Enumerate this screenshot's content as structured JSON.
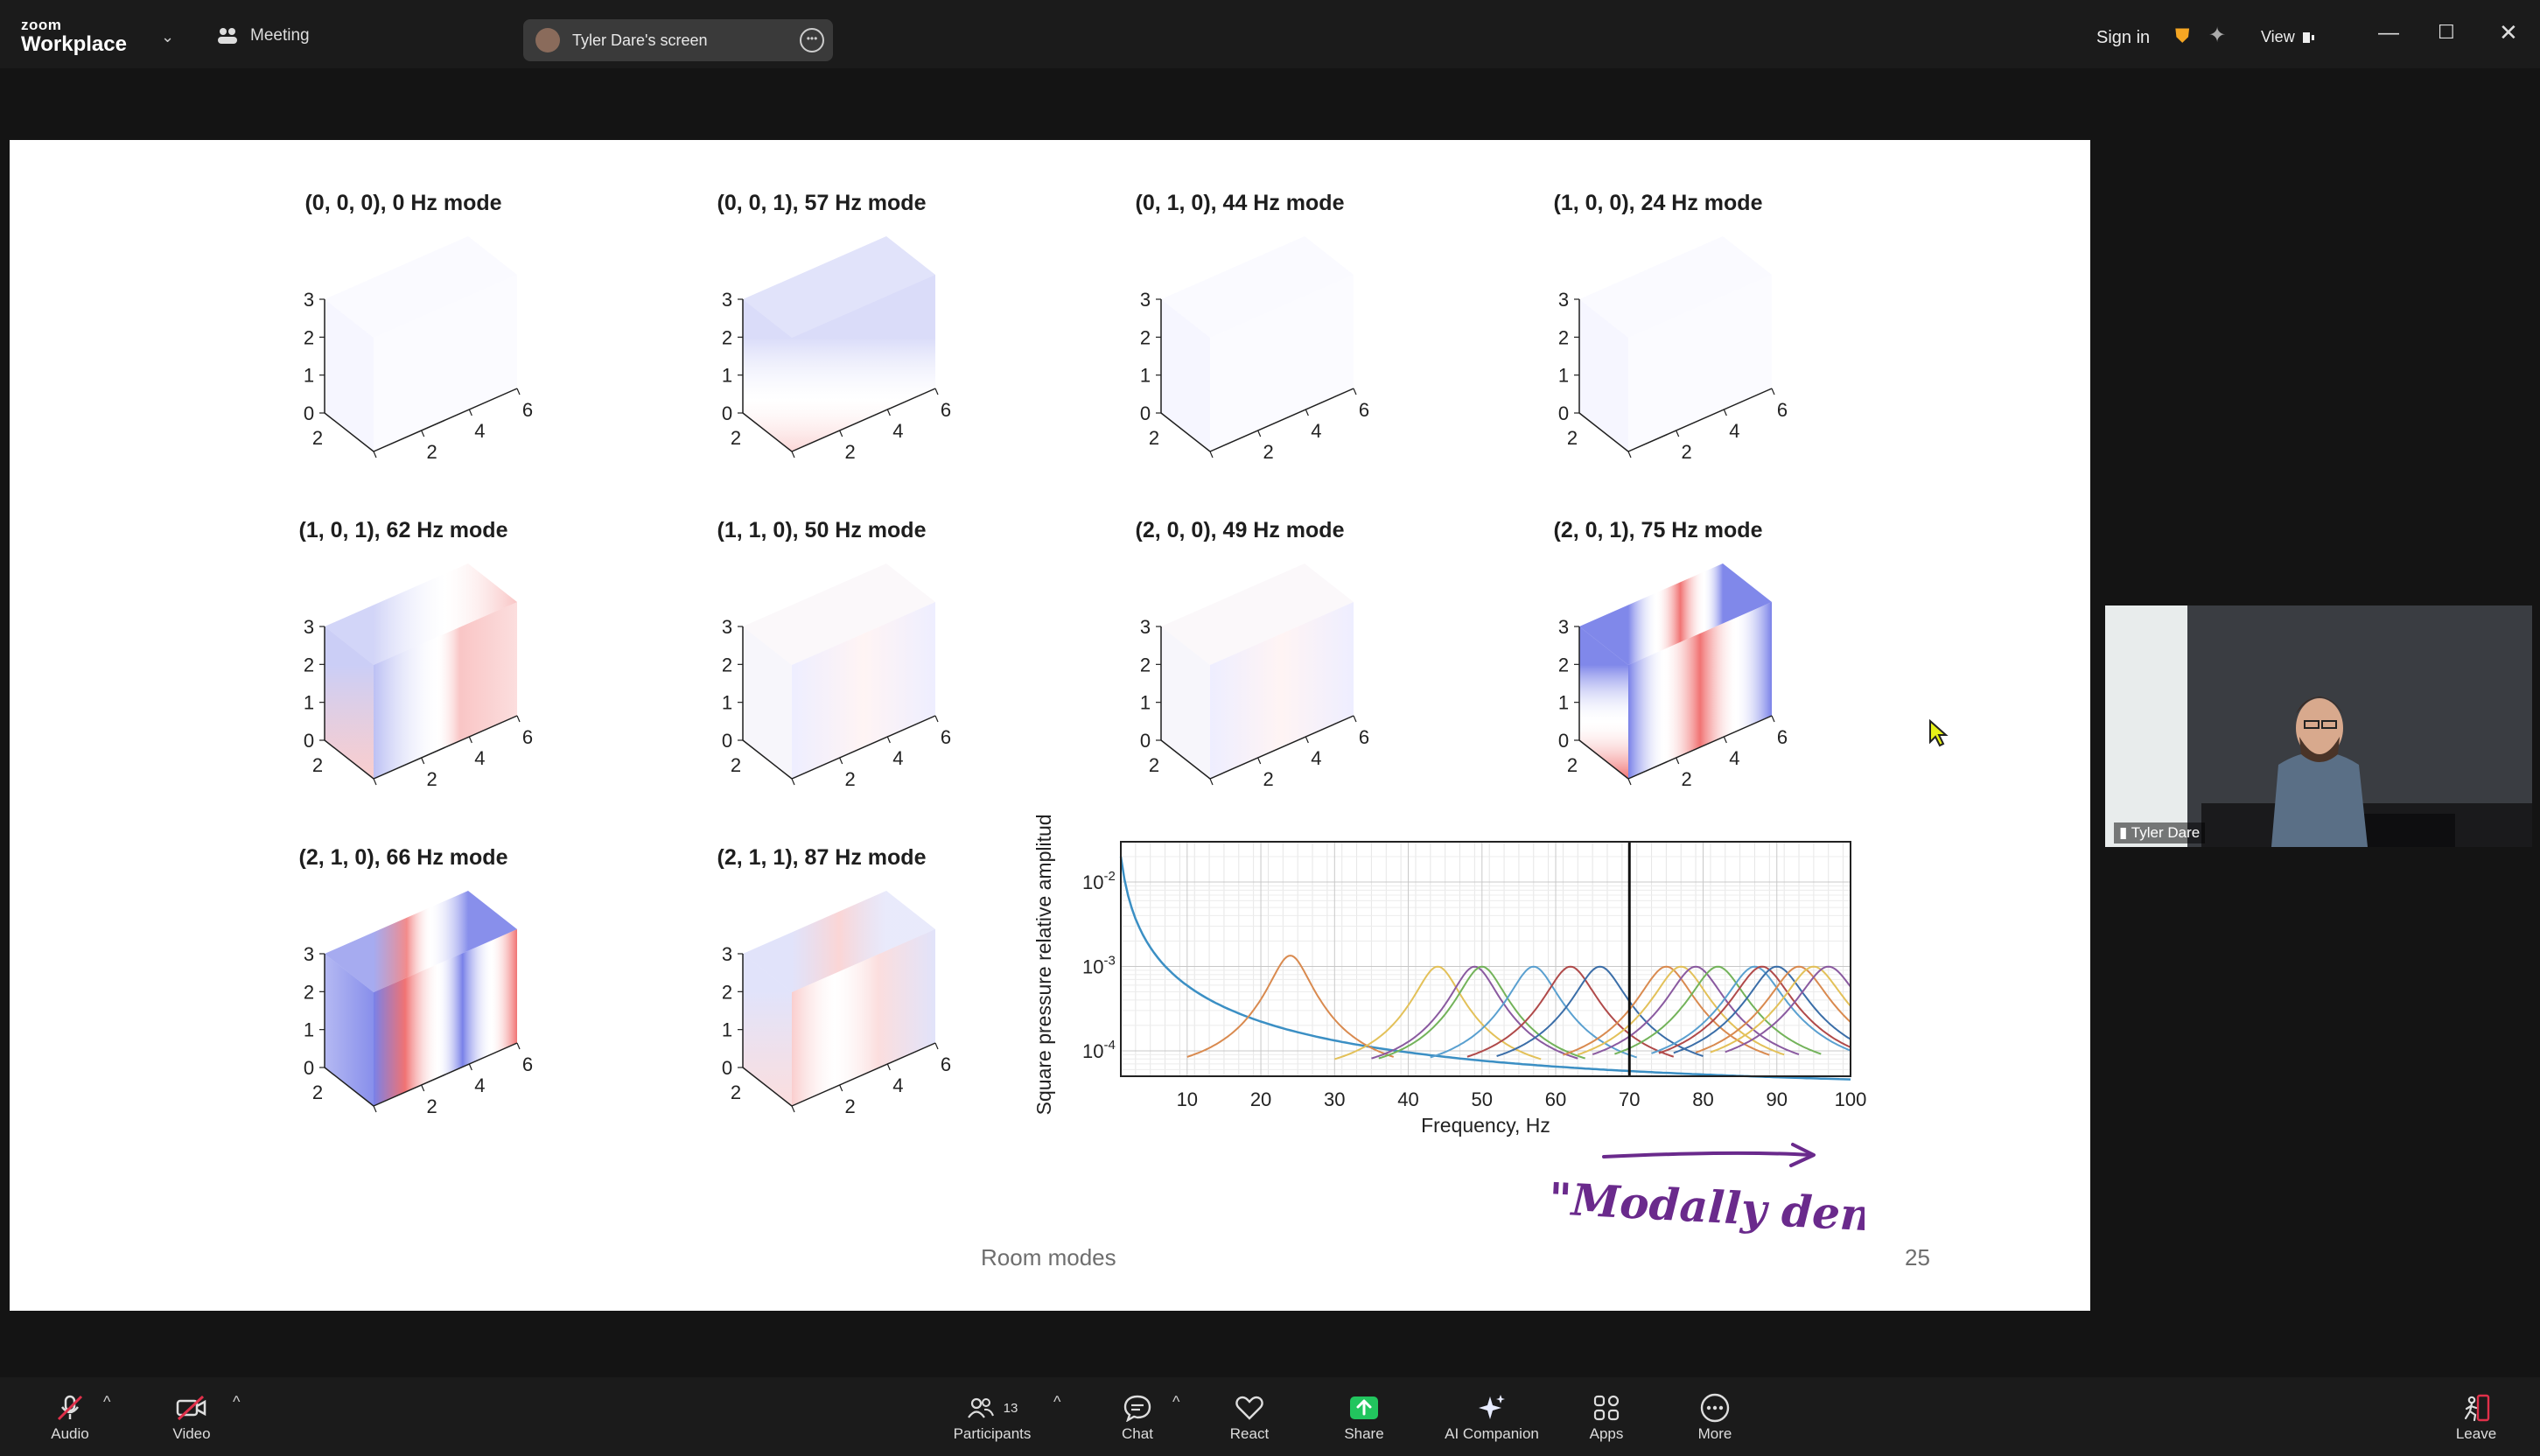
{
  "app": {
    "logo_line1": "zoom",
    "logo_line2": "Workplace"
  },
  "header": {
    "meeting_label": "Meeting",
    "screen_label": "Tyler Dare's screen",
    "signin": "Sign in",
    "view": "View"
  },
  "slide": {
    "footer_title": "Room modes",
    "page_number": "25",
    "annotation": "\"Modally dense\"",
    "modes": [
      {
        "title": "(0, 0, 0), 0 Hz mode",
        "pattern": "blank"
      },
      {
        "title": "(0, 0, 1), 57 Hz mode",
        "pattern": "z1"
      },
      {
        "title": "(0, 1, 0), 44 Hz mode",
        "pattern": "blank"
      },
      {
        "title": "(1, 0, 0), 24 Hz mode",
        "pattern": "blank"
      },
      {
        "title": "(1, 0, 1), 62 Hz mode",
        "pattern": "x1z1"
      },
      {
        "title": "(1, 1, 0), 50 Hz mode",
        "pattern": "faint"
      },
      {
        "title": "(2, 0, 0), 49 Hz mode",
        "pattern": "faint"
      },
      {
        "title": "(2, 0, 1), 75 Hz mode",
        "pattern": "x2z1"
      },
      {
        "title": "(2, 1, 0), 66 Hz mode",
        "pattern": "x2y1"
      },
      {
        "title": "(2, 1, 1), 87 Hz mode",
        "pattern": "x2y1z1"
      }
    ],
    "axis_ticks": {
      "vert": [
        "3",
        "2",
        "1",
        "0"
      ],
      "depth": [
        "2",
        "0"
      ],
      "length": [
        "0",
        "2",
        "4",
        "6"
      ]
    }
  },
  "chart_data": {
    "type": "line",
    "xlabel": "Frequency, Hz",
    "ylabel": "Square pressure relative amplitude",
    "xlim": [
      1,
      100
    ],
    "xticks": [
      10,
      20,
      30,
      40,
      50,
      60,
      70,
      80,
      90,
      100
    ],
    "yscale": "log",
    "ylim": [
      5e-05,
      0.03
    ],
    "yticks": [
      "10-2",
      "10-3",
      "10-4"
    ],
    "vline_x": 70,
    "grid": true,
    "resonance_peaks_hz": [
      24,
      44,
      49,
      50,
      57,
      62,
      66,
      75,
      77,
      79,
      82,
      87,
      88,
      90,
      93,
      95,
      97
    ],
    "peak_colors": [
      "#d98a4f",
      "#e3c159",
      "#8a5aa0",
      "#73b35a",
      "#5aa0d0",
      "#b04a4a",
      "#3b6ea8",
      "#d98a4f",
      "#e3c159",
      "#8a5aa0",
      "#73b35a",
      "#5aa0d0",
      "#b04a4a",
      "#3b6ea8",
      "#d98a4f",
      "#e3c159",
      "#8a5aa0"
    ],
    "zero_mode_color": "#3b8fc4"
  },
  "video": {
    "speaker_name": "Tyler Dare"
  },
  "toolbar": {
    "audio": "Audio",
    "video": "Video",
    "participants": "Participants",
    "participants_count": "13",
    "chat": "Chat",
    "react": "React",
    "share": "Share",
    "ai": "AI Companion",
    "apps": "Apps",
    "more": "More",
    "leave": "Leave"
  }
}
